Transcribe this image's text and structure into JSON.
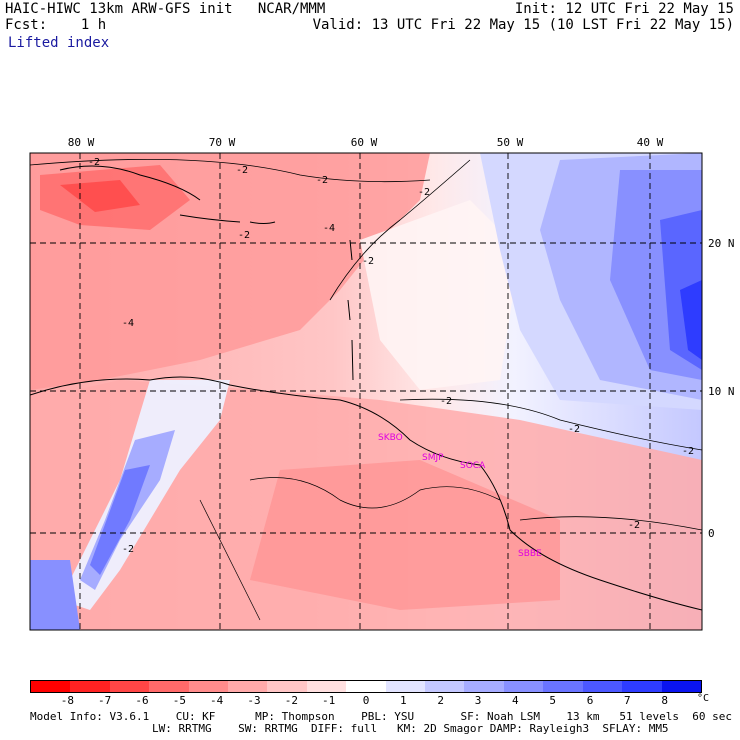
{
  "header": {
    "title_left": "HAIC-HIWC 13km ARW-GFS init   NCAR/MMM",
    "fcst_line": "Fcst:    1 h",
    "init_line": "Init: 12 UTC Fri 22 May 15",
    "valid_line": "Valid: 13 UTC Fri 22 May 15 (10 LST Fri 22 May 15)"
  },
  "field_label": "Lifted index",
  "map": {
    "lon_labels": [
      "80 W",
      "70 W",
      "60 W",
      "50 W",
      "40 W"
    ],
    "lat_labels": [
      "20 N",
      "10 N",
      "0"
    ],
    "contour_labels": [
      "-2",
      "-2",
      "-2",
      "-2",
      "-4",
      "-4",
      "-2",
      "-2",
      "-2",
      "-2",
      "-2",
      "-2",
      "-2"
    ],
    "stations": [
      "SKBO",
      "SMJP",
      "SOCA",
      "SBBE"
    ],
    "station_color": "#e000e0"
  },
  "colorbar": {
    "colors": [
      "#ff0000",
      "#ff2222",
      "#ff4646",
      "#ff6a6a",
      "#ff8c8c",
      "#ffaaaa",
      "#ffc6c6",
      "#ffe0e0",
      "#ffffff",
      "#e2e4ff",
      "#c4c8ff",
      "#a6acff",
      "#8890ff",
      "#6a74ff",
      "#4c58ff",
      "#2e3cff",
      "#0a14f0"
    ],
    "tick_labels": [
      "-8",
      "-7",
      "-6",
      "-5",
      "-4",
      "-3",
      "-2",
      "-1",
      "0",
      "1",
      "2",
      "3",
      "4",
      "5",
      "6",
      "7",
      "8"
    ],
    "unit": "°C"
  },
  "model_info": {
    "line1": "Model Info: V3.6.1    CU: KF      MP: Thompson    PBL: YSU       SF: Noah LSM    13 km   51 levels  60 sec",
    "line2": "LW: RRTMG    SW: RRTMG  DIFF: full   KM: 2D Smagor DAMP: Rayleigh3  SFLAY: MM5"
  }
}
